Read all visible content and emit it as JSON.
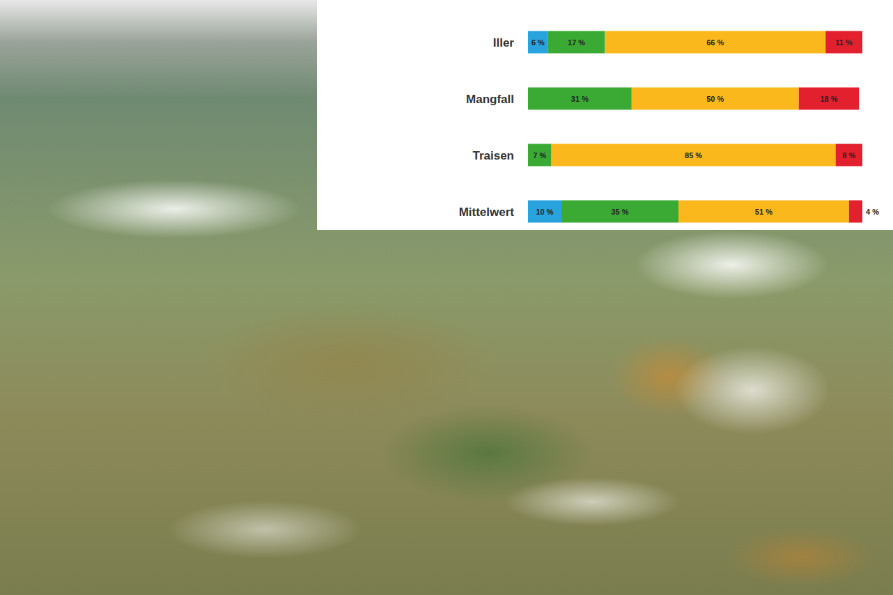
{
  "chart_data": {
    "type": "bar",
    "orientation": "horizontal",
    "stacked": true,
    "data_labels": true,
    "tick_labels": "y",
    "grid": false,
    "categories": [
      "Iller",
      "Mangfall",
      "Traisen",
      "Mittelwert"
    ],
    "xlim": [
      0,
      100
    ],
    "series": [
      {
        "color": "#29a3dd",
        "values": [
          6,
          0,
          0,
          10
        ],
        "value_labels": [
          "6 %",
          null,
          null,
          "10 %"
        ]
      },
      {
        "color": "#3aaa35",
        "values": [
          17,
          31,
          7,
          35
        ],
        "value_labels": [
          "17 %",
          "31 %",
          "7 %",
          "35 %"
        ]
      },
      {
        "color": "#fbb81d",
        "values": [
          66,
          50,
          85,
          51
        ],
        "value_labels": [
          "66 %",
          "50 %",
          "85 %",
          "51 %"
        ]
      },
      {
        "color": "#e2202e",
        "values": [
          11,
          18,
          8,
          4
        ],
        "value_labels": [
          "11 %",
          "18 %",
          "8 %",
          "4 %"
        ]
      }
    ]
  }
}
